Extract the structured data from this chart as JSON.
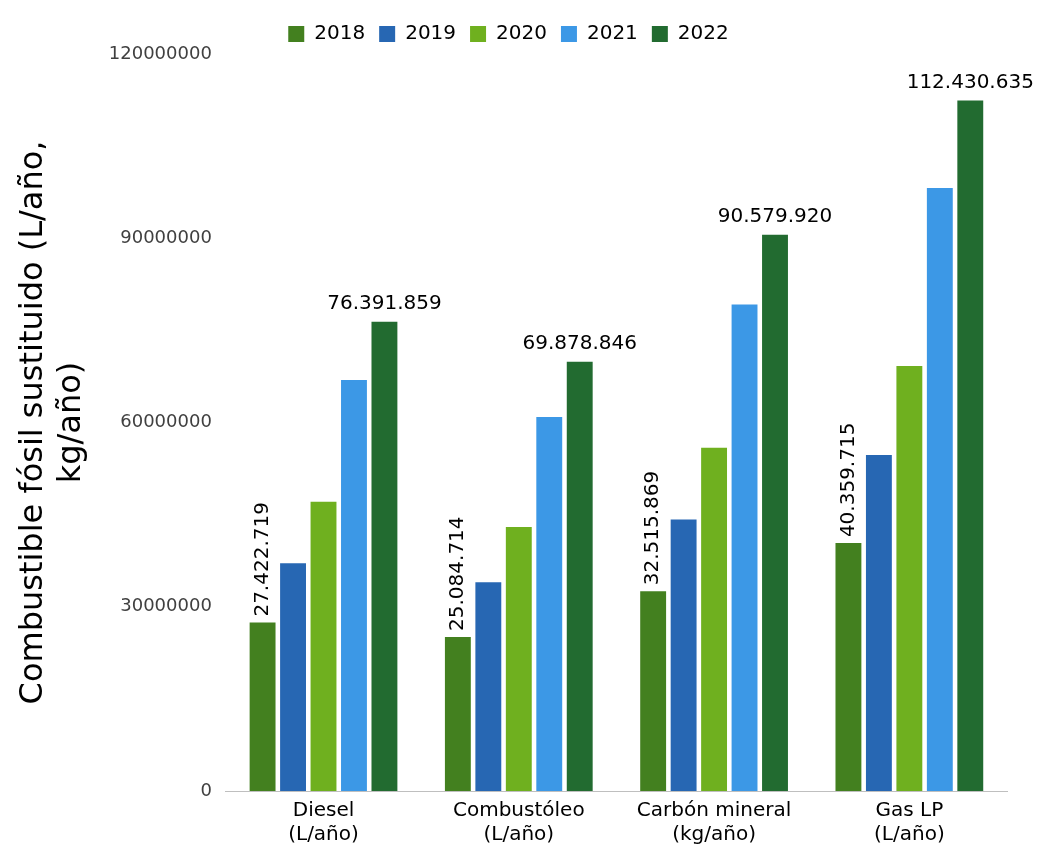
{
  "chart_data": {
    "type": "bar",
    "ylabel": "Combustible fósil sustituido (L/año, kg/año)",
    "categories": [
      "Diesel (L/año)",
      "Combustóleo (L/año)",
      "Carbón mineral (kg/año)",
      "Gas LP (L/año)"
    ],
    "series": [
      {
        "name": "2018",
        "color": "#43801f",
        "values": [
          27422719,
          25084714,
          32515869,
          40359715
        ],
        "value_labels": [
          "27.422.719",
          "25.084.714",
          "32.515.869",
          "40.359.715"
        ]
      },
      {
        "name": "2019",
        "color": "#2767b3",
        "values": [
          37100000,
          34000000,
          44200000,
          54700000
        ]
      },
      {
        "name": "2020",
        "color": "#6fb01f",
        "values": [
          47100000,
          43000000,
          55900000,
          69200000
        ]
      },
      {
        "name": "2021",
        "color": "#3c98e6",
        "values": [
          66900000,
          60900000,
          79200000,
          98200000
        ]
      },
      {
        "name": "2022",
        "color": "#226b30",
        "values": [
          76391859,
          69878846,
          90579920,
          112430635
        ],
        "value_labels": [
          "76.391.859",
          "69.878.846",
          "90.579.920",
          "112.430.635"
        ]
      }
    ],
    "ylim": [
      0,
      120000000
    ],
    "yticks": [
      0,
      30000000,
      60000000,
      90000000,
      120000000
    ],
    "grid": false,
    "legend": "top"
  }
}
